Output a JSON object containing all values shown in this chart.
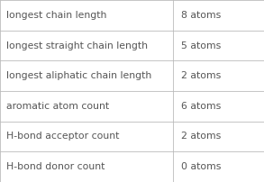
{
  "rows": [
    {
      "label": "longest chain length",
      "value": "8 atoms"
    },
    {
      "label": "longest straight chain length",
      "value": "5 atoms"
    },
    {
      "label": "longest aliphatic chain length",
      "value": "2 atoms"
    },
    {
      "label": "aromatic atom count",
      "value": "6 atoms"
    },
    {
      "label": "H-bond acceptor count",
      "value": "2 atoms"
    },
    {
      "label": "H-bond donor count",
      "value": "0 atoms"
    }
  ],
  "background_color": "#ffffff",
  "border_color": "#bbbbbb",
  "text_color": "#555555",
  "font_size": 7.8,
  "col_split": 0.655
}
